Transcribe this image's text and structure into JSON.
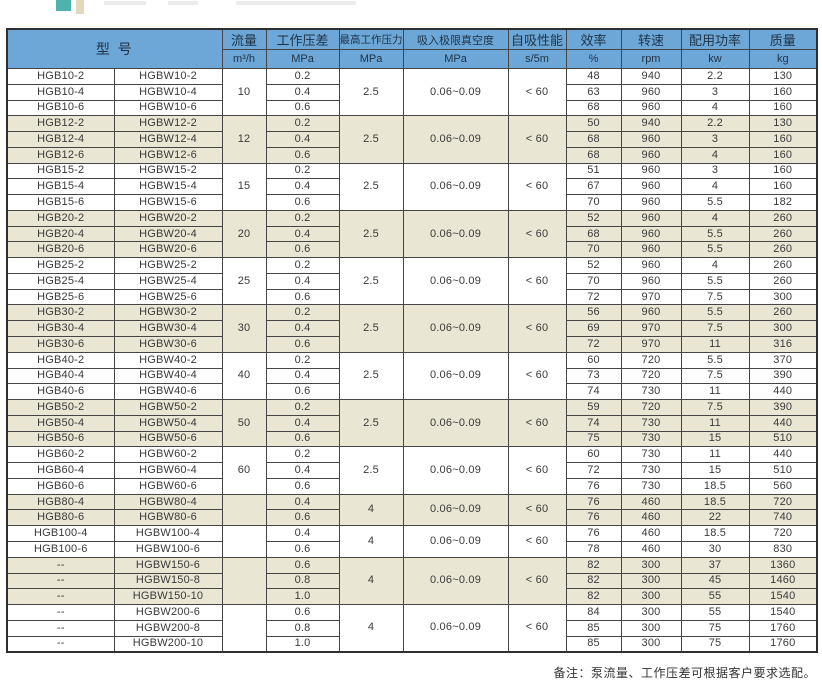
{
  "decoration": {
    "teal_square_color": "#4fb3ab",
    "beige_bar_color": "#e3d7bd"
  },
  "colors": {
    "header_bg": "#6ca7d7",
    "header_text": "#1f3346",
    "shaded_row_bg": "#e9e6d4",
    "border": "#454545"
  },
  "table": {
    "header": {
      "model_label": "型  号",
      "columns": [
        {
          "name": "流量",
          "unit": "m³/h"
        },
        {
          "name": "工作压差",
          "unit": "MPa"
        },
        {
          "name": "最高工作压力",
          "unit": "MPa"
        },
        {
          "name": "吸入极限真空度",
          "unit": "MPa"
        },
        {
          "name": "自吸性能",
          "unit": "s/5m"
        },
        {
          "name": "效率",
          "unit": "%"
        },
        {
          "name": "转速",
          "unit": "rpm"
        },
        {
          "name": "配用功率",
          "unit": "kw"
        },
        {
          "name": "质量",
          "unit": "kg"
        }
      ]
    },
    "groups": [
      {
        "shaded": false,
        "flow": "10",
        "max_pressure": "2.5",
        "vacuum": "0.06~0.09",
        "self_priming": "< 60",
        "rows": [
          {
            "model": "HGB10-2",
            "model_w": "HGBW10-2",
            "dp": "0.2",
            "eff": "48",
            "rpm": "940",
            "power": "2.2",
            "mass": "130"
          },
          {
            "model": "HGB10-4",
            "model_w": "HGBW10-4",
            "dp": "0.4",
            "eff": "63",
            "rpm": "960",
            "power": "3",
            "mass": "160"
          },
          {
            "model": "HGB10-6",
            "model_w": "HGBW10-6",
            "dp": "0.6",
            "eff": "68",
            "rpm": "960",
            "power": "4",
            "mass": "160"
          }
        ]
      },
      {
        "shaded": true,
        "flow": "12",
        "max_pressure": "2.5",
        "vacuum": "0.06~0.09",
        "self_priming": "< 60",
        "rows": [
          {
            "model": "HGB12-2",
            "model_w": "HGBW12-2",
            "dp": "0.2",
            "eff": "50",
            "rpm": "940",
            "power": "2.2",
            "mass": "130"
          },
          {
            "model": "HGB12-4",
            "model_w": "HGBW12-4",
            "dp": "0.4",
            "eff": "68",
            "rpm": "960",
            "power": "3",
            "mass": "160"
          },
          {
            "model": "HGB12-6",
            "model_w": "HGBW12-6",
            "dp": "0.6",
            "eff": "68",
            "rpm": "960",
            "power": "4",
            "mass": "160"
          }
        ]
      },
      {
        "shaded": false,
        "flow": "15",
        "max_pressure": "2.5",
        "vacuum": "0.06~0.09",
        "self_priming": "< 60",
        "rows": [
          {
            "model": "HGB15-2",
            "model_w": "HGBW15-2",
            "dp": "0.2",
            "eff": "51",
            "rpm": "960",
            "power": "3",
            "mass": "160"
          },
          {
            "model": "HGB15-4",
            "model_w": "HGBW15-4",
            "dp": "0.4",
            "eff": "67",
            "rpm": "960",
            "power": "4",
            "mass": "160"
          },
          {
            "model": "HGB15-6",
            "model_w": "HGBW15-6",
            "dp": "0.6",
            "eff": "70",
            "rpm": "960",
            "power": "5.5",
            "mass": "182"
          }
        ]
      },
      {
        "shaded": true,
        "flow": "20",
        "max_pressure": "2.5",
        "vacuum": "0.06~0.09",
        "self_priming": "< 60",
        "rows": [
          {
            "model": "HGB20-2",
            "model_w": "HGBW20-2",
            "dp": "0.2",
            "eff": "52",
            "rpm": "960",
            "power": "4",
            "mass": "260"
          },
          {
            "model": "HGB20-4",
            "model_w": "HGBW20-4",
            "dp": "0.4",
            "eff": "68",
            "rpm": "960",
            "power": "5.5",
            "mass": "260"
          },
          {
            "model": "HGB20-6",
            "model_w": "HGBW20-6",
            "dp": "0.6",
            "eff": "70",
            "rpm": "960",
            "power": "5.5",
            "mass": "260"
          }
        ]
      },
      {
        "shaded": false,
        "flow": "25",
        "max_pressure": "2.5",
        "vacuum": "0.06~0.09",
        "self_priming": "< 60",
        "rows": [
          {
            "model": "HGB25-2",
            "model_w": "HGBW25-2",
            "dp": "0.2",
            "eff": "52",
            "rpm": "960",
            "power": "4",
            "mass": "260"
          },
          {
            "model": "HGB25-4",
            "model_w": "HGBW25-4",
            "dp": "0.4",
            "eff": "70",
            "rpm": "960",
            "power": "5.5",
            "mass": "260"
          },
          {
            "model": "HGB25-6",
            "model_w": "HGBW25-6",
            "dp": "0.6",
            "eff": "72",
            "rpm": "970",
            "power": "7.5",
            "mass": "300"
          }
        ]
      },
      {
        "shaded": true,
        "flow": "30",
        "max_pressure": "2.5",
        "vacuum": "0.06~0.09",
        "self_priming": "< 60",
        "rows": [
          {
            "model": "HGB30-2",
            "model_w": "HGBW30-2",
            "dp": "0.2",
            "eff": "56",
            "rpm": "960",
            "power": "5.5",
            "mass": "260"
          },
          {
            "model": "HGB30-4",
            "model_w": "HGBW30-4",
            "dp": "0.4",
            "eff": "69",
            "rpm": "970",
            "power": "7.5",
            "mass": "300"
          },
          {
            "model": "HGB30-6",
            "model_w": "HGBW30-6",
            "dp": "0.6",
            "eff": "72",
            "rpm": "970",
            "power": "11",
            "mass": "316"
          }
        ]
      },
      {
        "shaded": false,
        "flow": "40",
        "max_pressure": "2.5",
        "vacuum": "0.06~0.09",
        "self_priming": "< 60",
        "rows": [
          {
            "model": "HGB40-2",
            "model_w": "HGBW40-2",
            "dp": "0.2",
            "eff": "60",
            "rpm": "720",
            "power": "5.5",
            "mass": "370"
          },
          {
            "model": "HGB40-4",
            "model_w": "HGBW40-4",
            "dp": "0.4",
            "eff": "73",
            "rpm": "720",
            "power": "7.5",
            "mass": "390"
          },
          {
            "model": "HGB40-6",
            "model_w": "HGBW40-6",
            "dp": "0.6",
            "eff": "74",
            "rpm": "730",
            "power": "11",
            "mass": "440"
          }
        ]
      },
      {
        "shaded": true,
        "flow": "50",
        "max_pressure": "2.5",
        "vacuum": "0.06~0.09",
        "self_priming": "< 60",
        "rows": [
          {
            "model": "HGB50-2",
            "model_w": "HGBW50-2",
            "dp": "0.2",
            "eff": "59",
            "rpm": "720",
            "power": "7.5",
            "mass": "390"
          },
          {
            "model": "HGB50-4",
            "model_w": "HGBW50-4",
            "dp": "0.4",
            "eff": "74",
            "rpm": "730",
            "power": "11",
            "mass": "440"
          },
          {
            "model": "HGB50-6",
            "model_w": "HGBW50-6",
            "dp": "0.6",
            "eff": "75",
            "rpm": "730",
            "power": "15",
            "mass": "510"
          }
        ]
      },
      {
        "shaded": false,
        "flow": "60",
        "max_pressure": "2.5",
        "vacuum": "0.06~0.09",
        "self_priming": "< 60",
        "rows": [
          {
            "model": "HGB60-2",
            "model_w": "HGBW60-2",
            "dp": "0.2",
            "eff": "60",
            "rpm": "730",
            "power": "11",
            "mass": "440"
          },
          {
            "model": "HGB60-4",
            "model_w": "HGBW60-4",
            "dp": "0.4",
            "eff": "72",
            "rpm": "730",
            "power": "15",
            "mass": "510"
          },
          {
            "model": "HGB60-6",
            "model_w": "HGBW60-6",
            "dp": "0.6",
            "eff": "76",
            "rpm": "730",
            "power": "18.5",
            "mass": "560"
          }
        ]
      },
      {
        "shaded": true,
        "flow": "",
        "max_pressure": "4",
        "vacuum": "0.06~0.09",
        "self_priming": "< 60",
        "rows": [
          {
            "model": "HGB80-4",
            "model_w": "HGBW80-4",
            "dp": "0.4",
            "eff": "76",
            "rpm": "460",
            "power": "18.5",
            "mass": "720"
          },
          {
            "model": "HGB80-6",
            "model_w": "HGBW80-6",
            "dp": "0.6",
            "eff": "76",
            "rpm": "460",
            "power": "22",
            "mass": "740"
          }
        ]
      },
      {
        "shaded": false,
        "flow": "",
        "max_pressure": "4",
        "vacuum": "0.06~0.09",
        "self_priming": "< 60",
        "rows": [
          {
            "model": "HGB100-4",
            "model_w": "HGBW100-4",
            "dp": "0.4",
            "eff": "76",
            "rpm": "460",
            "power": "18.5",
            "mass": "720"
          },
          {
            "model": "HGB100-6",
            "model_w": "HGBW100-6",
            "dp": "0.6",
            "eff": "78",
            "rpm": "460",
            "power": "30",
            "mass": "830"
          }
        ]
      },
      {
        "shaded": true,
        "flow": "",
        "max_pressure": "4",
        "vacuum": "0.06~0.09",
        "self_priming": "< 60",
        "rows": [
          {
            "model": "--",
            "model_w": "HGBW150-6",
            "dp": "0.6",
            "eff": "82",
            "rpm": "300",
            "power": "37",
            "mass": "1360"
          },
          {
            "model": "--",
            "model_w": "HGBW150-8",
            "dp": "0.8",
            "eff": "82",
            "rpm": "300",
            "power": "45",
            "mass": "1460"
          },
          {
            "model": "--",
            "model_w": "HGBW150-10",
            "dp": "1.0",
            "eff": "82",
            "rpm": "300",
            "power": "55",
            "mass": "1540"
          }
        ]
      },
      {
        "shaded": false,
        "flow": "",
        "max_pressure": "4",
        "vacuum": "0.06~0.09",
        "self_priming": "< 60",
        "rows": [
          {
            "model": "--",
            "model_w": "HGBW200-6",
            "dp": "0.6",
            "eff": "84",
            "rpm": "300",
            "power": "55",
            "mass": "1540"
          },
          {
            "model": "--",
            "model_w": "HGBW200-8",
            "dp": "0.8",
            "eff": "85",
            "rpm": "300",
            "power": "75",
            "mass": "1760"
          },
          {
            "model": "--",
            "model_w": "HGBW200-10",
            "dp": "1.0",
            "eff": "85",
            "rpm": "300",
            "power": "75",
            "mass": "1760"
          }
        ]
      }
    ],
    "note": "备注：泵流量、工作压差可根据客户要求选配。"
  }
}
